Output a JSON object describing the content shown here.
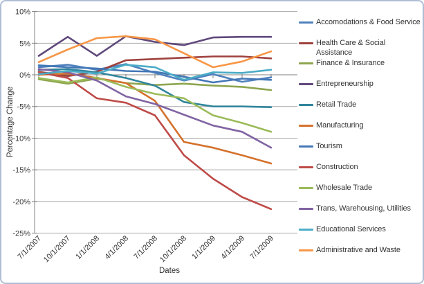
{
  "chart_data": {
    "type": "line",
    "title": "",
    "xlabel": "Dates",
    "ylabel": "Percentage Change",
    "categories": [
      "7/1/2007",
      "10/1/2007",
      "1/1/2008",
      "4/1/2008",
      "7/1/2008",
      "10/1/2008",
      "1/1/2009",
      "4/1/2009",
      "7/1/2009"
    ],
    "ylim": [
      -25,
      10
    ],
    "ytick_step": 5,
    "ytick_labels": [
      "10%",
      "5%",
      "0%",
      "-5%",
      "-10%",
      "-15%",
      "-20%",
      "-25%"
    ],
    "grid": "horizontal",
    "legend_position": "right",
    "series": [
      {
        "name": "Accomodations & Food Service",
        "color": "#4F81BD",
        "values": [
          1.2,
          1.6,
          0.8,
          1.7,
          0.3,
          -0.9,
          0.1,
          -1.1,
          -0.4
        ]
      },
      {
        "name": "Health Care & Social Assistance",
        "color": "#9E413E",
        "values": [
          0.5,
          -0.2,
          0.5,
          2.3,
          2.5,
          2.7,
          2.9,
          2.9,
          2.6
        ]
      },
      {
        "name": "Finance & Insurance",
        "color": "#8DA54E",
        "values": [
          -0.7,
          -1.4,
          -0.6,
          -1.3,
          -1.6,
          -1.4,
          -1.7,
          -1.9,
          -2.4
        ]
      },
      {
        "name": "Entrepreneurship",
        "color": "#5F497B",
        "values": [
          3.0,
          6.0,
          3.0,
          6.1,
          5.2,
          4.7,
          5.9,
          6.0,
          6.0
        ]
      },
      {
        "name": "Retail Trade",
        "color": "#31859C",
        "values": [
          0.8,
          0.9,
          0.4,
          -0.5,
          -1.7,
          -4.3,
          -5.0,
          -5.0,
          -5.1
        ]
      },
      {
        "name": "Manufacturing",
        "color": "#D4712B",
        "values": [
          0.0,
          0.2,
          -0.5,
          -1.3,
          -4.1,
          -10.6,
          -11.5,
          -12.7,
          -14.0
        ]
      },
      {
        "name": "Tourism",
        "color": "#4377B6",
        "values": [
          1.5,
          1.2,
          1.0,
          0.6,
          0.5,
          -0.3,
          -1.2,
          -0.6,
          -0.8
        ]
      },
      {
        "name": "Construction",
        "color": "#BE4B48",
        "values": [
          0.4,
          -0.5,
          -3.7,
          -4.4,
          -6.4,
          -12.7,
          -16.4,
          -19.3,
          -21.2
        ]
      },
      {
        "name": "Wholesale Trade",
        "color": "#9BBB59",
        "values": [
          -0.5,
          -1.2,
          -0.4,
          -1.9,
          -3.0,
          -3.7,
          -6.4,
          -7.6,
          -9.0
        ]
      },
      {
        "name": "Trans, Warehousing, Utilities",
        "color": "#8064A2",
        "values": [
          0.9,
          0.4,
          -0.9,
          -3.4,
          -4.6,
          -6.3,
          -8.0,
          -9.0,
          -11.5
        ]
      },
      {
        "name": "Educational Services",
        "color": "#4BACC6",
        "values": [
          0.1,
          0.6,
          0.2,
          1.6,
          1.2,
          -0.8,
          0.4,
          0.3,
          0.8
        ]
      },
      {
        "name": "Administrative and Waste",
        "color": "#F79646",
        "values": [
          2.0,
          4.0,
          5.8,
          6.1,
          5.6,
          3.4,
          1.2,
          2.1,
          3.7
        ]
      }
    ]
  }
}
